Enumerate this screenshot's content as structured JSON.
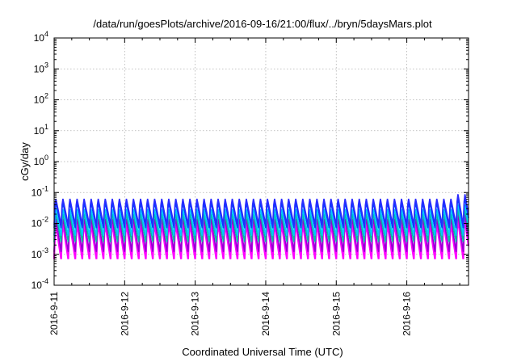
{
  "chart_data": {
    "type": "line",
    "title": "/data/run/goesPlots/archive/2016-09-16/21:00/flux/../bryn/5daysMars.plot",
    "xlabel": "Coordinated Universal Time (UTC)",
    "ylabel": "cGy/day",
    "yscale": "log",
    "ylim": [
      0.0001,
      10000
    ],
    "xlim": [
      "2016-09-11",
      "2016-09-16 21:00"
    ],
    "grid": true,
    "legend": "none",
    "x_tick_labels": [
      "2016-9-11",
      "2016-9-12",
      "2016-9-13",
      "2016-9-14",
      "2016-9-15",
      "2016-9-16"
    ],
    "y_ticks": [
      {
        "base": "10",
        "exp": "-4",
        "value": 0.0001
      },
      {
        "base": "10",
        "exp": "-3",
        "value": 0.001
      },
      {
        "base": "10",
        "exp": "-2",
        "value": 0.01
      },
      {
        "base": "10",
        "exp": "-1",
        "value": 0.1
      },
      {
        "base": "10",
        "exp": "0",
        "value": 1
      },
      {
        "base": "10",
        "exp": "1",
        "value": 10
      },
      {
        "base": "10",
        "exp": "2",
        "value": 100
      },
      {
        "base": "10",
        "exp": "3",
        "value": 1000
      },
      {
        "base": "10",
        "exp": "4",
        "value": 10000
      }
    ],
    "cycles_per_day": 10,
    "last_cycle_peak_scale": 1.45,
    "series": [
      {
        "color": "#ff00ff",
        "peak": 0.012,
        "trough": 0.0007
      },
      {
        "color": "#9400d3",
        "peak": 0.018,
        "trough": 0.0012
      },
      {
        "color": "#00c0a0",
        "peak": 0.025,
        "trough": 0.0025
      },
      {
        "color": "#00c8ff",
        "peak": 0.035,
        "trough": 0.004
      },
      {
        "color": "#0040ff",
        "peak": 0.055,
        "trough": 0.007
      },
      {
        "color": "#2a2aff",
        "peak": 0.075,
        "trough": 0.009
      }
    ]
  }
}
